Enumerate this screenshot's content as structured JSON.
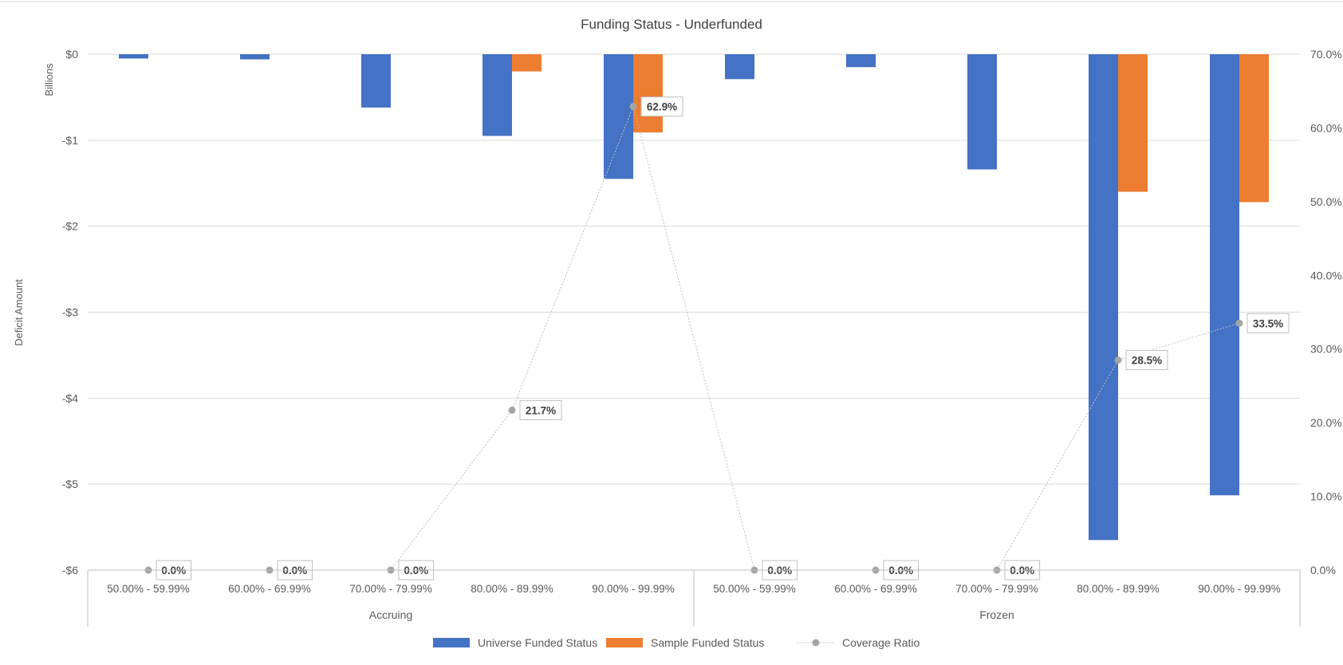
{
  "chart_data": {
    "type": "bar",
    "title": "Funding Status - Underfunded",
    "y_left": {
      "label": "Deficit Amount",
      "unit_label": "Billions",
      "range": [
        -6,
        0
      ],
      "ticks": [
        0,
        -1,
        -2,
        -3,
        -4,
        -5,
        -6
      ],
      "tick_labels": [
        "$0",
        "-$1",
        "-$2",
        "-$3",
        "-$4",
        "-$5",
        "-$6"
      ]
    },
    "y_right": {
      "range": [
        0,
        70
      ],
      "ticks": [
        0,
        10,
        20,
        30,
        40,
        50,
        60,
        70
      ],
      "tick_labels": [
        "0.0%",
        "10.0%",
        "20.0%",
        "30.0%",
        "40.0%",
        "50.0%",
        "60.0%",
        "70.0%"
      ]
    },
    "categories": [
      "50.00% - 59.99%",
      "60.00% - 69.99%",
      "70.00% - 79.99%",
      "80.00% - 89.99%",
      "90.00% - 99.99%",
      "50.00% - 59.99%",
      "60.00% - 69.99%",
      "70.00% - 79.99%",
      "80.00% - 89.99%",
      "90.00% - 99.99%"
    ],
    "groups": [
      {
        "label": "Accruing",
        "start": 0,
        "end": 4
      },
      {
        "label": "Frozen",
        "start": 5,
        "end": 9
      }
    ],
    "series": [
      {
        "name": "Universe Funded Status",
        "type": "bar",
        "axis": "left",
        "color": "#4472C4",
        "values": [
          -0.05,
          -0.06,
          -0.62,
          -0.95,
          -1.45,
          -0.29,
          -0.15,
          -1.34,
          -5.65,
          -5.13
        ]
      },
      {
        "name": "Sample Funded Status",
        "type": "bar",
        "axis": "left",
        "color": "#ED7D31",
        "values": [
          0,
          0,
          0,
          -0.2,
          -0.91,
          0,
          0,
          0,
          -1.6,
          -1.72
        ]
      },
      {
        "name": "Coverage Ratio",
        "type": "line",
        "axis": "right",
        "color": "#A5A5A5",
        "values": [
          0.0,
          0.0,
          0.0,
          21.7,
          62.9,
          0.0,
          0.0,
          0.0,
          28.5,
          33.5
        ],
        "labels": [
          "0.0%",
          "0.0%",
          "0.0%",
          "21.7%",
          "62.9%",
          "0.0%",
          "0.0%",
          "0.0%",
          "28.5%",
          "33.5%"
        ]
      }
    ],
    "gridlines": true,
    "legend_position": "bottom"
  }
}
